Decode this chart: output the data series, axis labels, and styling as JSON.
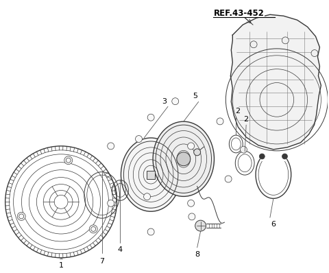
{
  "bg_color": "#ffffff",
  "line_color": "#444444",
  "ref_label": "REF.43-452",
  "figsize": [
    4.8,
    3.98
  ],
  "dpi": 100
}
